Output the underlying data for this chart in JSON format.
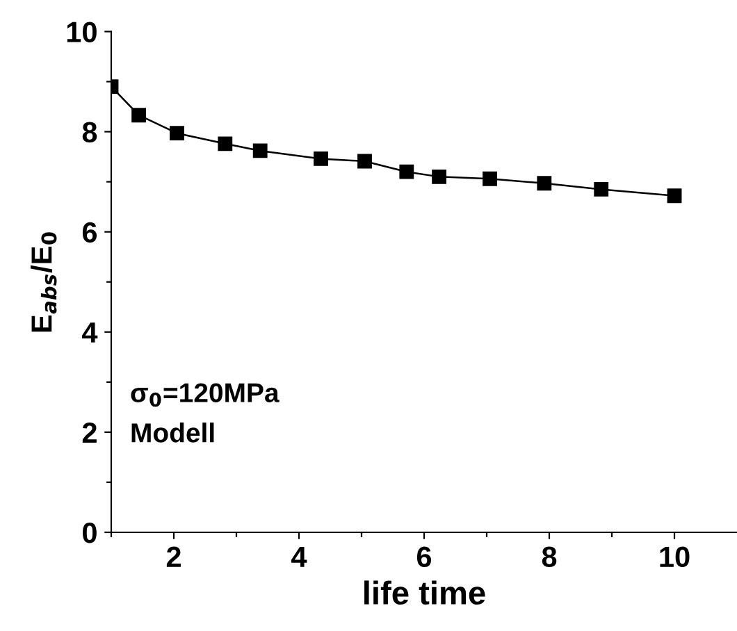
{
  "chart_data": {
    "type": "line",
    "xlabel": "life time",
    "ylabel": "E$_{abs}$/E$_{0}$",
    "x": [
      1.0,
      1.44,
      2.05,
      2.82,
      3.38,
      4.35,
      5.05,
      5.72,
      6.24,
      7.05,
      7.92,
      8.83,
      10.0
    ],
    "series": [
      {
        "color": "#000000",
        "values": [
          8.9,
          8.33,
          7.97,
          7.76,
          7.62,
          7.46,
          7.41,
          7.2,
          7.1,
          7.06,
          6.97,
          6.85,
          6.72
        ]
      }
    ],
    "xlim": [
      1,
      11
    ],
    "ylim": [
      0,
      10
    ],
    "xticks": [
      {
        "value": 1,
        "label": null
      },
      2,
      {
        "value": 3,
        "label": null
      },
      4,
      {
        "value": 5,
        "label": null
      },
      6,
      {
        "value": 7,
        "label": null
      },
      8,
      {
        "value": 9,
        "label": null
      },
      10
    ],
    "yticks": [
      0,
      {
        "value": 1,
        "label": null
      },
      2,
      {
        "value": 3,
        "label": null
      },
      4,
      {
        "value": 5,
        "label": null
      },
      6,
      {
        "value": 7,
        "label": null
      },
      8,
      {
        "value": 9,
        "label": null
      },
      10
    ],
    "annotations": [
      "σ$_{0}$=120MPa",
      "Modell"
    ],
    "marker": "square",
    "line_style": "solid",
    "grid": false,
    "legend": false
  }
}
